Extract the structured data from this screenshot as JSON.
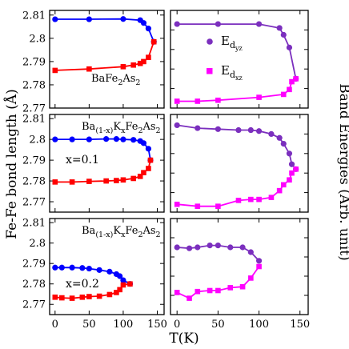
{
  "figure": {
    "ylabel_left": "Fe-Fe bond length (Å)",
    "ylabel_right": "Band Energies (Arb. unit)",
    "xlabel": "T(K)",
    "colors": {
      "bond_low": "#0000ff",
      "bond_high": "#ff0000",
      "energy_dyz": "#7b2fbe",
      "energy_dxz": "#ff00ff",
      "left_label": "#6b006b",
      "right_label": "#ff0000"
    },
    "left_yticks": [
      "2.77",
      "2.78",
      "2.79",
      "2.8",
      "2.81"
    ],
    "xticks": [
      "0",
      "50",
      "100",
      "150"
    ]
  },
  "chart_data": [
    {
      "type": "line",
      "row": 0,
      "col": 0,
      "annotation": {
        "base": "BaFe",
        "sub1": "2",
        "mid": "As",
        "sub2": "2"
      },
      "xlim": [
        -8,
        160
      ],
      "ylim": [
        2.77,
        2.812
      ],
      "yticks": [
        2.77,
        2.78,
        2.79,
        2.8,
        2.81
      ],
      "series": [
        {
          "color": "#0000ff",
          "marker": "circle",
          "x": [
            0,
            50,
            100,
            125,
            130,
            137,
            145
          ],
          "y": [
            2.8082,
            2.8082,
            2.8083,
            2.8078,
            2.8066,
            2.8042,
            2.7985
          ]
        },
        {
          "color": "#ff0000",
          "marker": "square",
          "x": [
            0,
            50,
            100,
            115,
            125,
            130,
            137,
            145
          ],
          "y": [
            2.7862,
            2.7868,
            2.7878,
            2.7885,
            2.7892,
            2.79,
            2.7918,
            2.7985
          ]
        }
      ]
    },
    {
      "type": "line",
      "row": 0,
      "col": 1,
      "legend": [
        {
          "base": "E",
          "sub": "d",
          "subsub": "yz",
          "color": "#7b2fbe",
          "marker": "circle"
        },
        {
          "base": "E",
          "sub": "d",
          "subsub": "xz",
          "color": "#ff00ff",
          "marker": "square"
        }
      ],
      "xlim": [
        -8,
        160
      ],
      "ylim": [
        0,
        1
      ],
      "series": [
        {
          "color": "#7b2fbe",
          "marker": "circle",
          "x": [
            0,
            50,
            100,
            125,
            130,
            137,
            145
          ],
          "y": [
            0.86,
            0.86,
            0.86,
            0.82,
            0.75,
            0.62,
            0.3
          ]
        },
        {
          "color": "#ff00ff",
          "marker": "square",
          "x": [
            0,
            25,
            50,
            100,
            130,
            137,
            140,
            145
          ],
          "y": [
            0.07,
            0.07,
            0.08,
            0.11,
            0.14,
            0.19,
            0.27,
            0.3
          ]
        }
      ]
    },
    {
      "type": "line",
      "row": 1,
      "col": 0,
      "annotation": {
        "base": "Ba",
        "sub1": "(1-x)",
        "mid": "K",
        "sub2": "x",
        "tail": "Fe",
        "sub3": "2",
        "tail2": "As",
        "sub4": "2"
      },
      "param_label": "x=0.1",
      "xlim": [
        -8,
        160
      ],
      "ylim": [
        2.765,
        2.812
      ],
      "yticks": [
        2.77,
        2.78,
        2.79,
        2.8,
        2.81
      ],
      "series": [
        {
          "color": "#0000ff",
          "marker": "circle",
          "x": [
            0,
            25,
            50,
            75,
            90,
            100,
            115,
            125,
            130,
            137,
            140
          ],
          "y": [
            2.8,
            2.8,
            2.8,
            2.8002,
            2.8002,
            2.8,
            2.7998,
            2.7992,
            2.7982,
            2.7955,
            2.79
          ]
        },
        {
          "color": "#ff0000",
          "marker": "square",
          "x": [
            0,
            25,
            50,
            75,
            90,
            100,
            115,
            125,
            130,
            137,
            140
          ],
          "y": [
            2.7795,
            2.7795,
            2.7798,
            2.78,
            2.7802,
            2.7805,
            2.7812,
            2.7822,
            2.784,
            2.786,
            2.79
          ]
        }
      ]
    },
    {
      "type": "line",
      "row": 1,
      "col": 1,
      "xlim": [
        -8,
        160
      ],
      "ylim": [
        0,
        1
      ],
      "series": [
        {
          "color": "#7b2fbe",
          "marker": "circle",
          "x": [
            0,
            25,
            50,
            75,
            90,
            100,
            115,
            125,
            130,
            137,
            140,
            145
          ],
          "y": [
            0.89,
            0.86,
            0.85,
            0.84,
            0.84,
            0.83,
            0.8,
            0.76,
            0.7,
            0.6,
            0.49,
            0.44
          ]
        },
        {
          "color": "#ff00ff",
          "marker": "square",
          "x": [
            0,
            25,
            50,
            75,
            90,
            100,
            115,
            125,
            130,
            137,
            140,
            145
          ],
          "y": [
            0.08,
            0.06,
            0.06,
            0.12,
            0.13,
            0.13,
            0.15,
            0.22,
            0.28,
            0.33,
            0.4,
            0.44
          ]
        }
      ]
    },
    {
      "type": "line",
      "row": 2,
      "col": 0,
      "annotation": {
        "base": "Ba",
        "sub1": "(1-x)",
        "mid": "K",
        "sub2": "x",
        "tail": "Fe",
        "sub3": "2",
        "tail2": "As",
        "sub4": "2"
      },
      "param_label": "x=0.2",
      "xlim": [
        -8,
        160
      ],
      "ylim": [
        2.765,
        2.812
      ],
      "yticks": [
        2.77,
        2.78,
        2.79,
        2.8,
        2.81
      ],
      "series": [
        {
          "color": "#0000ff",
          "marker": "circle",
          "x": [
            0,
            10,
            25,
            40,
            50,
            65,
            80,
            90,
            95,
            100,
            110
          ],
          "y": [
            2.788,
            2.788,
            2.788,
            2.7878,
            2.7875,
            2.7868,
            2.786,
            2.7848,
            2.7838,
            2.7818,
            2.78
          ]
        },
        {
          "color": "#ff0000",
          "marker": "square",
          "x": [
            0,
            10,
            25,
            40,
            50,
            65,
            80,
            90,
            95,
            100,
            110
          ],
          "y": [
            2.7735,
            2.7732,
            2.773,
            2.7735,
            2.7738,
            2.774,
            2.7748,
            2.7758,
            2.7772,
            2.7795,
            2.78
          ]
        }
      ]
    },
    {
      "type": "line",
      "row": 2,
      "col": 1,
      "xlim": [
        -8,
        160
      ],
      "ylim": [
        0,
        1
      ],
      "series": [
        {
          "color": "#7b2fbe",
          "marker": "circle",
          "x": [
            0,
            15,
            25,
            40,
            50,
            65,
            80,
            90,
            100
          ],
          "y": [
            0.7,
            0.69,
            0.7,
            0.72,
            0.72,
            0.7,
            0.7,
            0.65,
            0.56
          ]
        },
        {
          "color": "#ff00ff",
          "marker": "square",
          "x": [
            0,
            15,
            25,
            40,
            50,
            65,
            80,
            90,
            100
          ],
          "y": [
            0.23,
            0.17,
            0.24,
            0.25,
            0.25,
            0.28,
            0.29,
            0.38,
            0.5
          ]
        }
      ]
    }
  ]
}
